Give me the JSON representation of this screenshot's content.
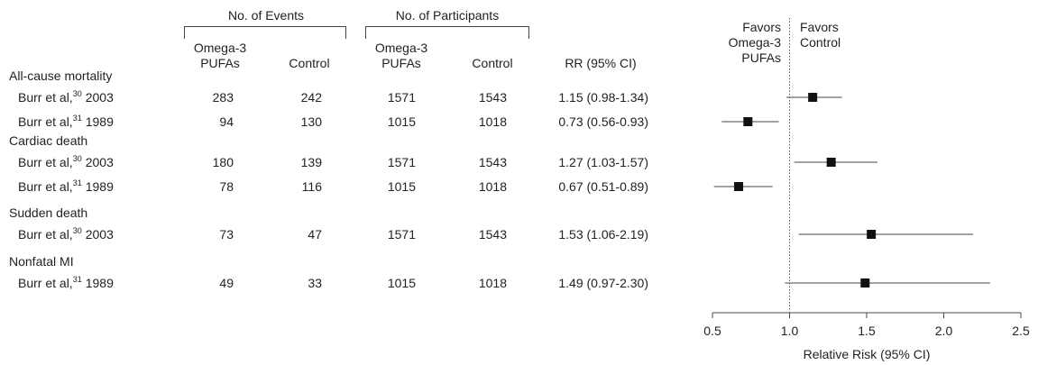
{
  "headers": {
    "events_group": "No. of Events",
    "participants_group": "No. of Participants",
    "omega_line1": "Omega-3",
    "omega_line2": "PUFAs",
    "control": "Control",
    "rr": "RR (95% CI)",
    "favors_left_1": "Favors",
    "favors_left_2": "Omega-3",
    "favors_left_3": "PUFAs",
    "favors_right_1": "Favors",
    "favors_right_2": "Control"
  },
  "chart_data": {
    "type": "forest",
    "xlabel": "Relative Risk (95% CI)",
    "xlim": [
      0.5,
      2.5
    ],
    "xticks": [
      "0.5",
      "1.0",
      "1.5",
      "2.0",
      "2.5"
    ],
    "reference_line": 1.0,
    "groups": [
      {
        "label": "All-cause mortality",
        "studies": [
          {
            "author": "Burr et al,",
            "ref": "30",
            "year": "2003",
            "events_omega": "283",
            "events_control": "242",
            "part_omega": "1571",
            "part_control": "1543",
            "rr_text": "1.15 (0.98-1.34)",
            "rr": 1.15,
            "lo": 0.98,
            "hi": 1.34
          },
          {
            "author": "Burr et al,",
            "ref": "31",
            "year": "1989",
            "events_omega": "94",
            "events_control": "130",
            "part_omega": "1015",
            "part_control": "1018",
            "rr_text": "0.73 (0.56-0.93)",
            "rr": 0.73,
            "lo": 0.56,
            "hi": 0.93
          }
        ]
      },
      {
        "label": "Cardiac death",
        "studies": [
          {
            "author": "Burr et al,",
            "ref": "30",
            "year": "2003",
            "events_omega": "180",
            "events_control": "139",
            "part_omega": "1571",
            "part_control": "1543",
            "rr_text": "1.27 (1.03-1.57)",
            "rr": 1.27,
            "lo": 1.03,
            "hi": 1.57
          },
          {
            "author": "Burr et al,",
            "ref": "31",
            "year": "1989",
            "events_omega": "78",
            "events_control": "116",
            "part_omega": "1015",
            "part_control": "1018",
            "rr_text": "0.67 (0.51-0.89)",
            "rr": 0.67,
            "lo": 0.51,
            "hi": 0.89
          }
        ]
      },
      {
        "label": "Sudden death",
        "studies": [
          {
            "author": "Burr et al,",
            "ref": "30",
            "year": "2003",
            "events_omega": "73",
            "events_control": "47",
            "part_omega": "1571",
            "part_control": "1543",
            "rr_text": "1.53 (1.06-2.19)",
            "rr": 1.53,
            "lo": 1.06,
            "hi": 2.19
          }
        ]
      },
      {
        "label": "Nonfatal MI",
        "studies": [
          {
            "author": "Burr et al,",
            "ref": "31",
            "year": "1989",
            "events_omega": "49",
            "events_control": "33",
            "part_omega": "1015",
            "part_control": "1018",
            "rr_text": "1.49 (0.97-2.30)",
            "rr": 1.49,
            "lo": 0.97,
            "hi": 2.3
          }
        ]
      }
    ]
  }
}
